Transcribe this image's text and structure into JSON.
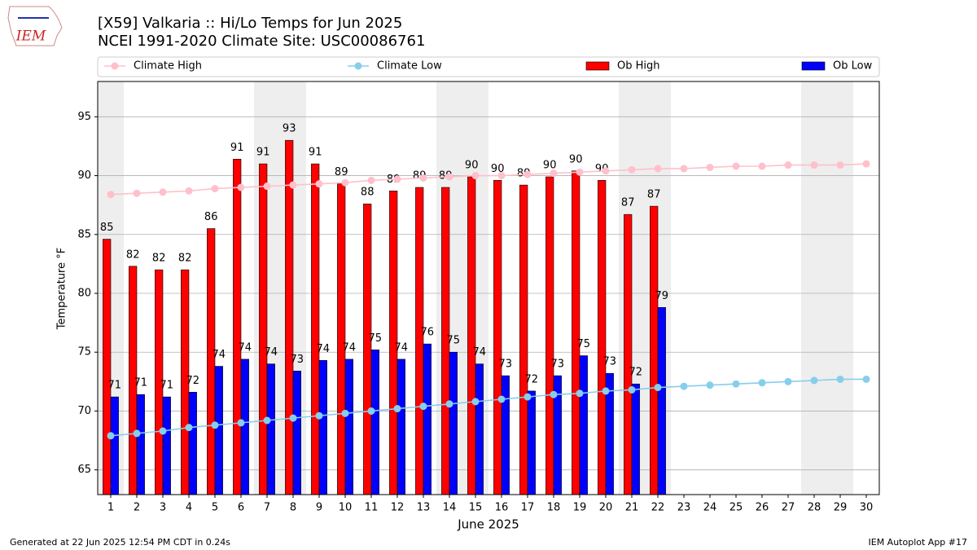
{
  "logo_text": "IEM",
  "footer_left": "Generated at 22 Jun 2025 12:54 PM CDT in 0.24s",
  "footer_right": "IEM Autoplot App #17",
  "chart_data": {
    "type": "bar",
    "title": "[X59] Valkaria :: Hi/Lo Temps for Jun 2025",
    "subtitle": "NCEI 1991-2020 Climate Site: USC00086761",
    "x_label": "June 2025",
    "y_label": "Temperature °F",
    "categories": [
      "1",
      "2",
      "3",
      "4",
      "5",
      "6",
      "7",
      "8",
      "9",
      "10",
      "11",
      "12",
      "13",
      "14",
      "15",
      "16",
      "17",
      "18",
      "19",
      "20",
      "21",
      "22",
      "23",
      "24",
      "25",
      "26",
      "27",
      "28",
      "29",
      "30"
    ],
    "ylim": [
      62.9,
      98
    ],
    "yticks": [
      65,
      70,
      75,
      80,
      85,
      90,
      95
    ],
    "grid": true,
    "legend": "top",
    "series": [
      {
        "name": "Climate High",
        "type": "line",
        "color": "#ffc0cb",
        "values": [
          88.4,
          88.5,
          88.6,
          88.7,
          88.9,
          89.0,
          89.1,
          89.2,
          89.3,
          89.4,
          89.6,
          89.7,
          89.8,
          89.9,
          90.0,
          90.0,
          90.1,
          90.2,
          90.3,
          90.4,
          90.5,
          90.6,
          90.6,
          90.7,
          90.8,
          90.8,
          90.9,
          90.9,
          90.9,
          91.0
        ]
      },
      {
        "name": "Climate Low",
        "type": "line",
        "color": "#87ceeb",
        "values": [
          67.9,
          68.1,
          68.3,
          68.6,
          68.8,
          69.0,
          69.2,
          69.4,
          69.6,
          69.8,
          70.0,
          70.2,
          70.4,
          70.6,
          70.8,
          71.0,
          71.2,
          71.4,
          71.5,
          71.7,
          71.8,
          72.0,
          72.1,
          72.2,
          72.3,
          72.4,
          72.5,
          72.6,
          72.7,
          72.7
        ]
      },
      {
        "name": "Ob High",
        "type": "bar",
        "color": "#ff0000",
        "values": [
          84.6,
          82.3,
          82.0,
          82.0,
          85.5,
          91.4,
          91.0,
          93.0,
          91.0,
          89.3,
          87.6,
          88.7,
          89.0,
          89.0,
          89.9,
          89.6,
          89.2,
          89.9,
          90.4,
          89.6,
          86.7,
          87.4,
          null,
          null,
          null,
          null,
          null,
          null,
          null,
          null
        ],
        "value_labels": [
          "85",
          "82",
          "82",
          "82",
          "86",
          "91",
          "91",
          "93",
          "91",
          "89",
          "88",
          "89",
          "89",
          "89",
          "90",
          "90",
          "89",
          "90",
          "90",
          "90",
          "87",
          "87",
          null,
          null,
          null,
          null,
          null,
          null,
          null,
          null
        ]
      },
      {
        "name": "Ob Low",
        "type": "bar",
        "color": "#0000ff",
        "values": [
          71.2,
          71.4,
          71.2,
          71.6,
          73.8,
          74.4,
          74.0,
          73.4,
          74.3,
          74.4,
          75.2,
          74.4,
          75.7,
          75.0,
          74.0,
          73.0,
          71.7,
          73.0,
          74.7,
          73.2,
          72.3,
          78.8,
          null,
          null,
          null,
          null,
          null,
          null,
          null,
          null
        ],
        "value_labels": [
          "71",
          "71",
          "71",
          "72",
          "74",
          "74",
          "74",
          "73",
          "74",
          "74",
          "75",
          "74",
          "76",
          "75",
          "74",
          "73",
          "72",
          "73",
          "75",
          "73",
          "72",
          "79",
          null,
          null,
          null,
          null,
          null,
          null,
          null,
          null
        ]
      }
    ]
  }
}
